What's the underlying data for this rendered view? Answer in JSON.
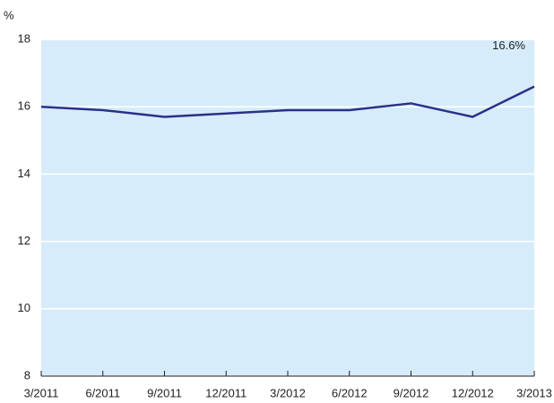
{
  "chart_data": {
    "type": "line",
    "y_label": "%",
    "categories": [
      "3/2011",
      "6/2011",
      "9/2011",
      "12/2011",
      "3/2012",
      "6/2012",
      "9/2012",
      "12/2012",
      "3/2013"
    ],
    "values": [
      16.0,
      15.9,
      15.7,
      15.8,
      15.9,
      15.9,
      16.1,
      15.7,
      16.6
    ],
    "value_labels": [
      null,
      null,
      null,
      null,
      null,
      null,
      null,
      null,
      "16.6%"
    ],
    "color": "#2b3087",
    "background": "#d6ecfa",
    "ylim": [
      8,
      18
    ],
    "yticks": [
      8,
      10,
      12,
      14,
      16,
      18
    ],
    "grid": true
  }
}
